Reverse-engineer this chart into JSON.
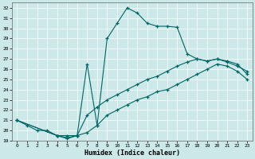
{
  "xlabel": "Humidex (Indice chaleur)",
  "bg_color": "#cce8e8",
  "line_color": "#006666",
  "ylim": [
    19,
    32.5
  ],
  "xlim": [
    -0.5,
    23.5
  ],
  "yticks": [
    19,
    20,
    21,
    22,
    23,
    24,
    25,
    26,
    27,
    28,
    29,
    30,
    31,
    32
  ],
  "xticks": [
    0,
    1,
    2,
    3,
    4,
    5,
    6,
    7,
    8,
    9,
    10,
    11,
    12,
    13,
    14,
    15,
    16,
    17,
    18,
    19,
    20,
    21,
    22,
    23
  ],
  "line1_x": [
    0,
    1,
    2,
    3,
    4,
    5,
    6,
    7,
    8,
    9,
    10,
    11,
    12,
    13,
    14,
    15,
    16,
    17,
    18,
    19,
    20,
    21,
    22,
    23
  ],
  "line1_y": [
    21.0,
    20.5,
    20.0,
    20.0,
    19.5,
    19.5,
    19.5,
    26.5,
    20.5,
    29.0,
    30.5,
    32.0,
    31.5,
    30.5,
    30.2,
    30.2,
    30.1,
    27.5,
    27.0,
    26.8,
    27.0,
    26.7,
    26.3,
    25.8
  ],
  "line2_x": [
    0,
    4,
    5,
    6,
    7,
    8,
    9,
    10,
    11,
    12,
    13,
    14,
    15,
    16,
    17,
    18,
    19,
    20,
    21,
    22,
    23
  ],
  "line2_y": [
    21.0,
    19.5,
    19.3,
    19.5,
    21.5,
    22.3,
    23.0,
    23.5,
    24.0,
    24.5,
    25.0,
    25.3,
    25.8,
    26.3,
    26.7,
    27.0,
    26.8,
    27.0,
    26.8,
    26.5,
    25.5
  ],
  "line3_x": [
    0,
    4,
    5,
    6,
    7,
    8,
    9,
    10,
    11,
    12,
    13,
    14,
    15,
    16,
    17,
    18,
    19,
    20,
    21,
    22,
    23
  ],
  "line3_y": [
    21.0,
    19.5,
    19.2,
    19.5,
    19.8,
    20.5,
    21.5,
    22.0,
    22.5,
    23.0,
    23.3,
    23.8,
    24.0,
    24.5,
    25.0,
    25.5,
    26.0,
    26.5,
    26.3,
    25.8,
    25.0
  ]
}
